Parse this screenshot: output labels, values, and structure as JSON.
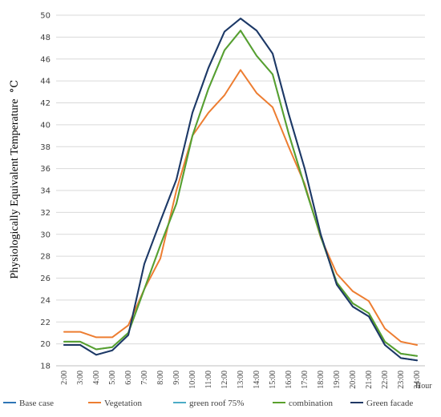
{
  "chart_data": {
    "type": "line",
    "title": "",
    "ylabel": "Physiologically Equivalent Temperature",
    "yunit": "°C",
    "xlabel": "Hour",
    "ylim": [
      18,
      50
    ],
    "yticks": [
      18,
      20,
      22,
      24,
      26,
      28,
      30,
      32,
      34,
      36,
      38,
      40,
      42,
      44,
      46,
      48,
      50
    ],
    "grid": true,
    "legend_position": "bottom",
    "categories": [
      "2:00",
      "3:00",
      "4:00",
      "5:00",
      "6:00",
      "7:00",
      "8:00",
      "9:00",
      "10:00",
      "11:00",
      "12:00",
      "13:00",
      "14:00",
      "15:00",
      "16:00",
      "17:00",
      "18:00",
      "19:00",
      "20:00",
      "21:00",
      "22:00",
      "23:00",
      "24:00"
    ],
    "series": [
      {
        "name": "Base case",
        "color": "#2e75b6",
        "values": [
          19.9,
          19.9,
          19.0,
          19.4,
          20.8,
          27.3,
          31.2,
          35.0,
          41.1,
          45.2,
          48.5,
          49.7,
          48.6,
          46.5,
          41.0,
          36.0,
          30.0,
          25.4,
          23.4,
          22.5,
          19.9,
          18.7,
          18.5
        ]
      },
      {
        "name": "Vegetation",
        "color": "#ed7d31",
        "values": [
          21.1,
          21.1,
          20.6,
          20.6,
          21.7,
          25.0,
          27.8,
          34.0,
          39.0,
          41.1,
          42.7,
          45.0,
          42.9,
          41.6,
          38.0,
          34.6,
          29.7,
          26.4,
          24.8,
          23.9,
          21.4,
          20.2,
          19.9
        ]
      },
      {
        "name": "green roof 75%",
        "color": "#4bacc6",
        "values": [
          20.2,
          20.2,
          19.5,
          19.7,
          21.0,
          25.0,
          29.0,
          32.8,
          39.0,
          43.3,
          46.8,
          48.6,
          46.3,
          44.6,
          39.2,
          34.4,
          29.8,
          25.6,
          23.7,
          22.8,
          20.2,
          19.1,
          18.9
        ]
      },
      {
        "name": "combination",
        "color": "#5aa02c",
        "values": [
          20.2,
          20.2,
          19.5,
          19.7,
          21.0,
          25.0,
          29.0,
          32.8,
          39.0,
          43.3,
          46.8,
          48.6,
          46.3,
          44.6,
          39.2,
          34.4,
          29.8,
          25.6,
          23.7,
          22.8,
          20.2,
          19.1,
          18.9
        ]
      },
      {
        "name": "Green facade",
        "color": "#1f3864",
        "values": [
          19.9,
          19.9,
          19.0,
          19.4,
          20.8,
          27.3,
          31.2,
          35.0,
          41.1,
          45.2,
          48.5,
          49.7,
          48.6,
          46.5,
          41.0,
          36.0,
          30.0,
          25.4,
          23.4,
          22.5,
          19.9,
          18.7,
          18.5
        ]
      }
    ]
  }
}
